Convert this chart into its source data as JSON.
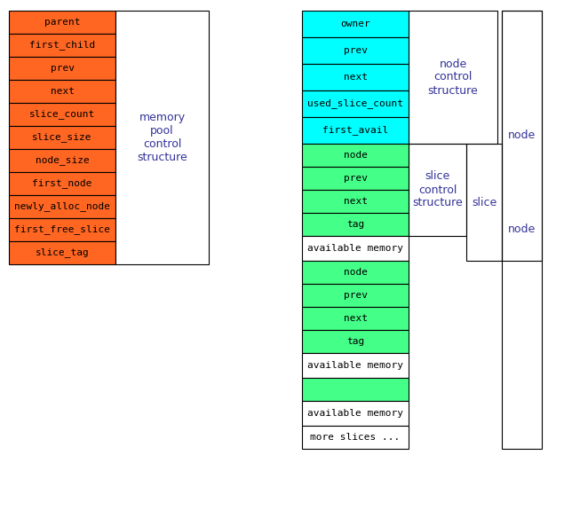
{
  "orange": "#FF6622",
  "cyan": "#00FFFF",
  "green": "#44FF88",
  "white": "#FFFFFF",
  "black": "#000000",
  "text_color": "#333399",
  "pool_rows": [
    "parent",
    "first_child",
    "prev",
    "next",
    "slice_count",
    "slice_size",
    "node_size",
    "first_node",
    "newly_alloc_node",
    "first_free_slice",
    "slice_tag"
  ],
  "node_ctrl_rows": [
    "owner",
    "prev",
    "next",
    "used_slice_count",
    "first_avail"
  ],
  "slice_ctrl_rows": [
    "node",
    "prev",
    "next",
    "tag"
  ],
  "pool_label": "memory\npool\ncontrol\nstructure",
  "node_ctrl_label": "node\ncontrol\nstructure",
  "slice_ctrl_label": "slice\ncontrol\nstructure",
  "slice_label": "slice",
  "node_label": "node",
  "avail_label": "available memory",
  "more_label": "more slices ..."
}
